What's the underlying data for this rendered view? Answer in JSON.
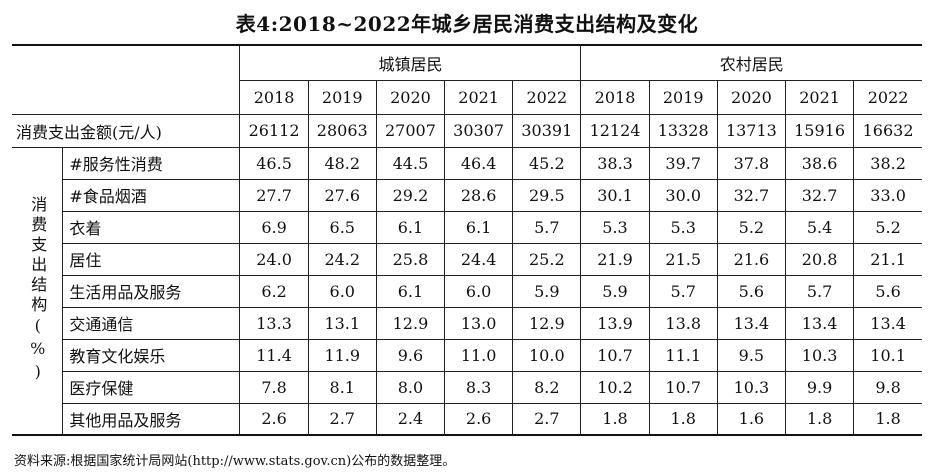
{
  "title": "表4:2018~2022年城乡居民消费支出结构及变化",
  "groups": {
    "urban": "城镇居民",
    "rural": "农村居民"
  },
  "years": [
    "2018",
    "2019",
    "2020",
    "2021",
    "2022"
  ],
  "amount_row": {
    "label": "消费支出金额(元/人)",
    "urban": [
      "26112",
      "28063",
      "27007",
      "30307",
      "30391"
    ],
    "rural": [
      "12124",
      "13328",
      "13713",
      "15916",
      "16632"
    ]
  },
  "side_label": "消费支出结构(%)",
  "rows": [
    {
      "label": "#服务性消费",
      "urban": [
        "46.5",
        "48.2",
        "44.5",
        "46.4",
        "45.2"
      ],
      "rural": [
        "38.3",
        "39.7",
        "37.8",
        "38.6",
        "38.2"
      ]
    },
    {
      "label": "#食品烟酒",
      "urban": [
        "27.7",
        "27.6",
        "29.2",
        "28.6",
        "29.5"
      ],
      "rural": [
        "30.1",
        "30.0",
        "32.7",
        "32.7",
        "33.0"
      ]
    },
    {
      "label": "衣着",
      "urban": [
        "6.9",
        "6.5",
        "6.1",
        "6.1",
        "5.7"
      ],
      "rural": [
        "5.3",
        "5.3",
        "5.2",
        "5.4",
        "5.2"
      ]
    },
    {
      "label": "居住",
      "urban": [
        "24.0",
        "24.2",
        "25.8",
        "24.4",
        "25.2"
      ],
      "rural": [
        "21.9",
        "21.5",
        "21.6",
        "20.8",
        "21.1"
      ]
    },
    {
      "label": "生活用品及服务",
      "urban": [
        "6.2",
        "6.0",
        "6.1",
        "6.0",
        "5.9"
      ],
      "rural": [
        "5.9",
        "5.7",
        "5.6",
        "5.7",
        "5.6"
      ]
    },
    {
      "label": "交通通信",
      "urban": [
        "13.3",
        "13.1",
        "12.9",
        "13.0",
        "12.9"
      ],
      "rural": [
        "13.9",
        "13.8",
        "13.4",
        "13.4",
        "13.4"
      ]
    },
    {
      "label": "教育文化娱乐",
      "urban": [
        "11.4",
        "11.9",
        "9.6",
        "11.0",
        "10.0"
      ],
      "rural": [
        "10.7",
        "11.1",
        "9.5",
        "10.3",
        "10.1"
      ]
    },
    {
      "label": "医疗保健",
      "urban": [
        "7.8",
        "8.1",
        "8.0",
        "8.3",
        "8.2"
      ],
      "rural": [
        "10.2",
        "10.7",
        "10.3",
        "9.9",
        "9.8"
      ]
    },
    {
      "label": "其他用品及服务",
      "urban": [
        "2.6",
        "2.7",
        "2.4",
        "2.6",
        "2.7"
      ],
      "rural": [
        "1.8",
        "1.8",
        "1.6",
        "1.8",
        "1.8"
      ]
    }
  ],
  "source": "资料来源:根据国家统计局网站(http://www.stats.gov.cn)公布的数据整理。"
}
